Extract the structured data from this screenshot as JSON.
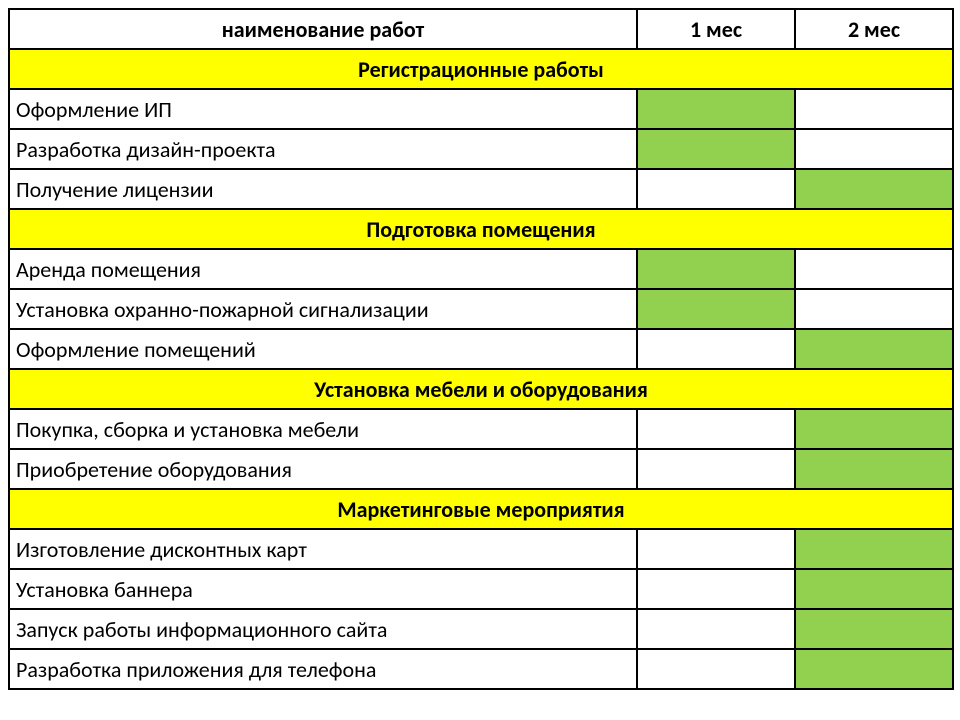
{
  "colors": {
    "section_bg": "#ffff00",
    "fill_bg": "#92d050",
    "empty_bg": "#ffffff",
    "border": "#000000"
  },
  "fontsize": 22,
  "columns": {
    "name": "наименование работ",
    "m1": "1 мес",
    "m2": "2 мес"
  },
  "sections": [
    {
      "title": "Регистрационные работы",
      "tasks": [
        {
          "label": "Оформление ИП",
          "m1": true,
          "m2": false
        },
        {
          "label": "Разработка дизайн-проекта",
          "m1": true,
          "m2": false
        },
        {
          "label": "Получение лицензии",
          "m1": false,
          "m2": true
        }
      ]
    },
    {
      "title": "Подготовка помещения",
      "tasks": [
        {
          "label": "Аренда помещения",
          "m1": true,
          "m2": false
        },
        {
          "label": "Установка охранно-пожарной сигнализации",
          "m1": true,
          "m2": false
        },
        {
          "label": "Оформление помещений",
          "m1": false,
          "m2": true
        }
      ]
    },
    {
      "title": "Установка мебели и оборудования",
      "tasks": [
        {
          "label": "Покупка, сборка и установка мебели",
          "m1": false,
          "m2": true
        },
        {
          "label": "Приобретение оборудования",
          "m1": false,
          "m2": true
        }
      ]
    },
    {
      "title": "Маркетинговые мероприятия",
      "tasks": [
        {
          "label": "Изготовление дисконтных карт",
          "m1": false,
          "m2": true
        },
        {
          "label": "Установка баннера",
          "m1": false,
          "m2": true
        },
        {
          "label": "Запуск работы информационного сайта",
          "m1": false,
          "m2": true
        },
        {
          "label": "Разработка приложения для телефона",
          "m1": false,
          "m2": true
        }
      ]
    }
  ]
}
